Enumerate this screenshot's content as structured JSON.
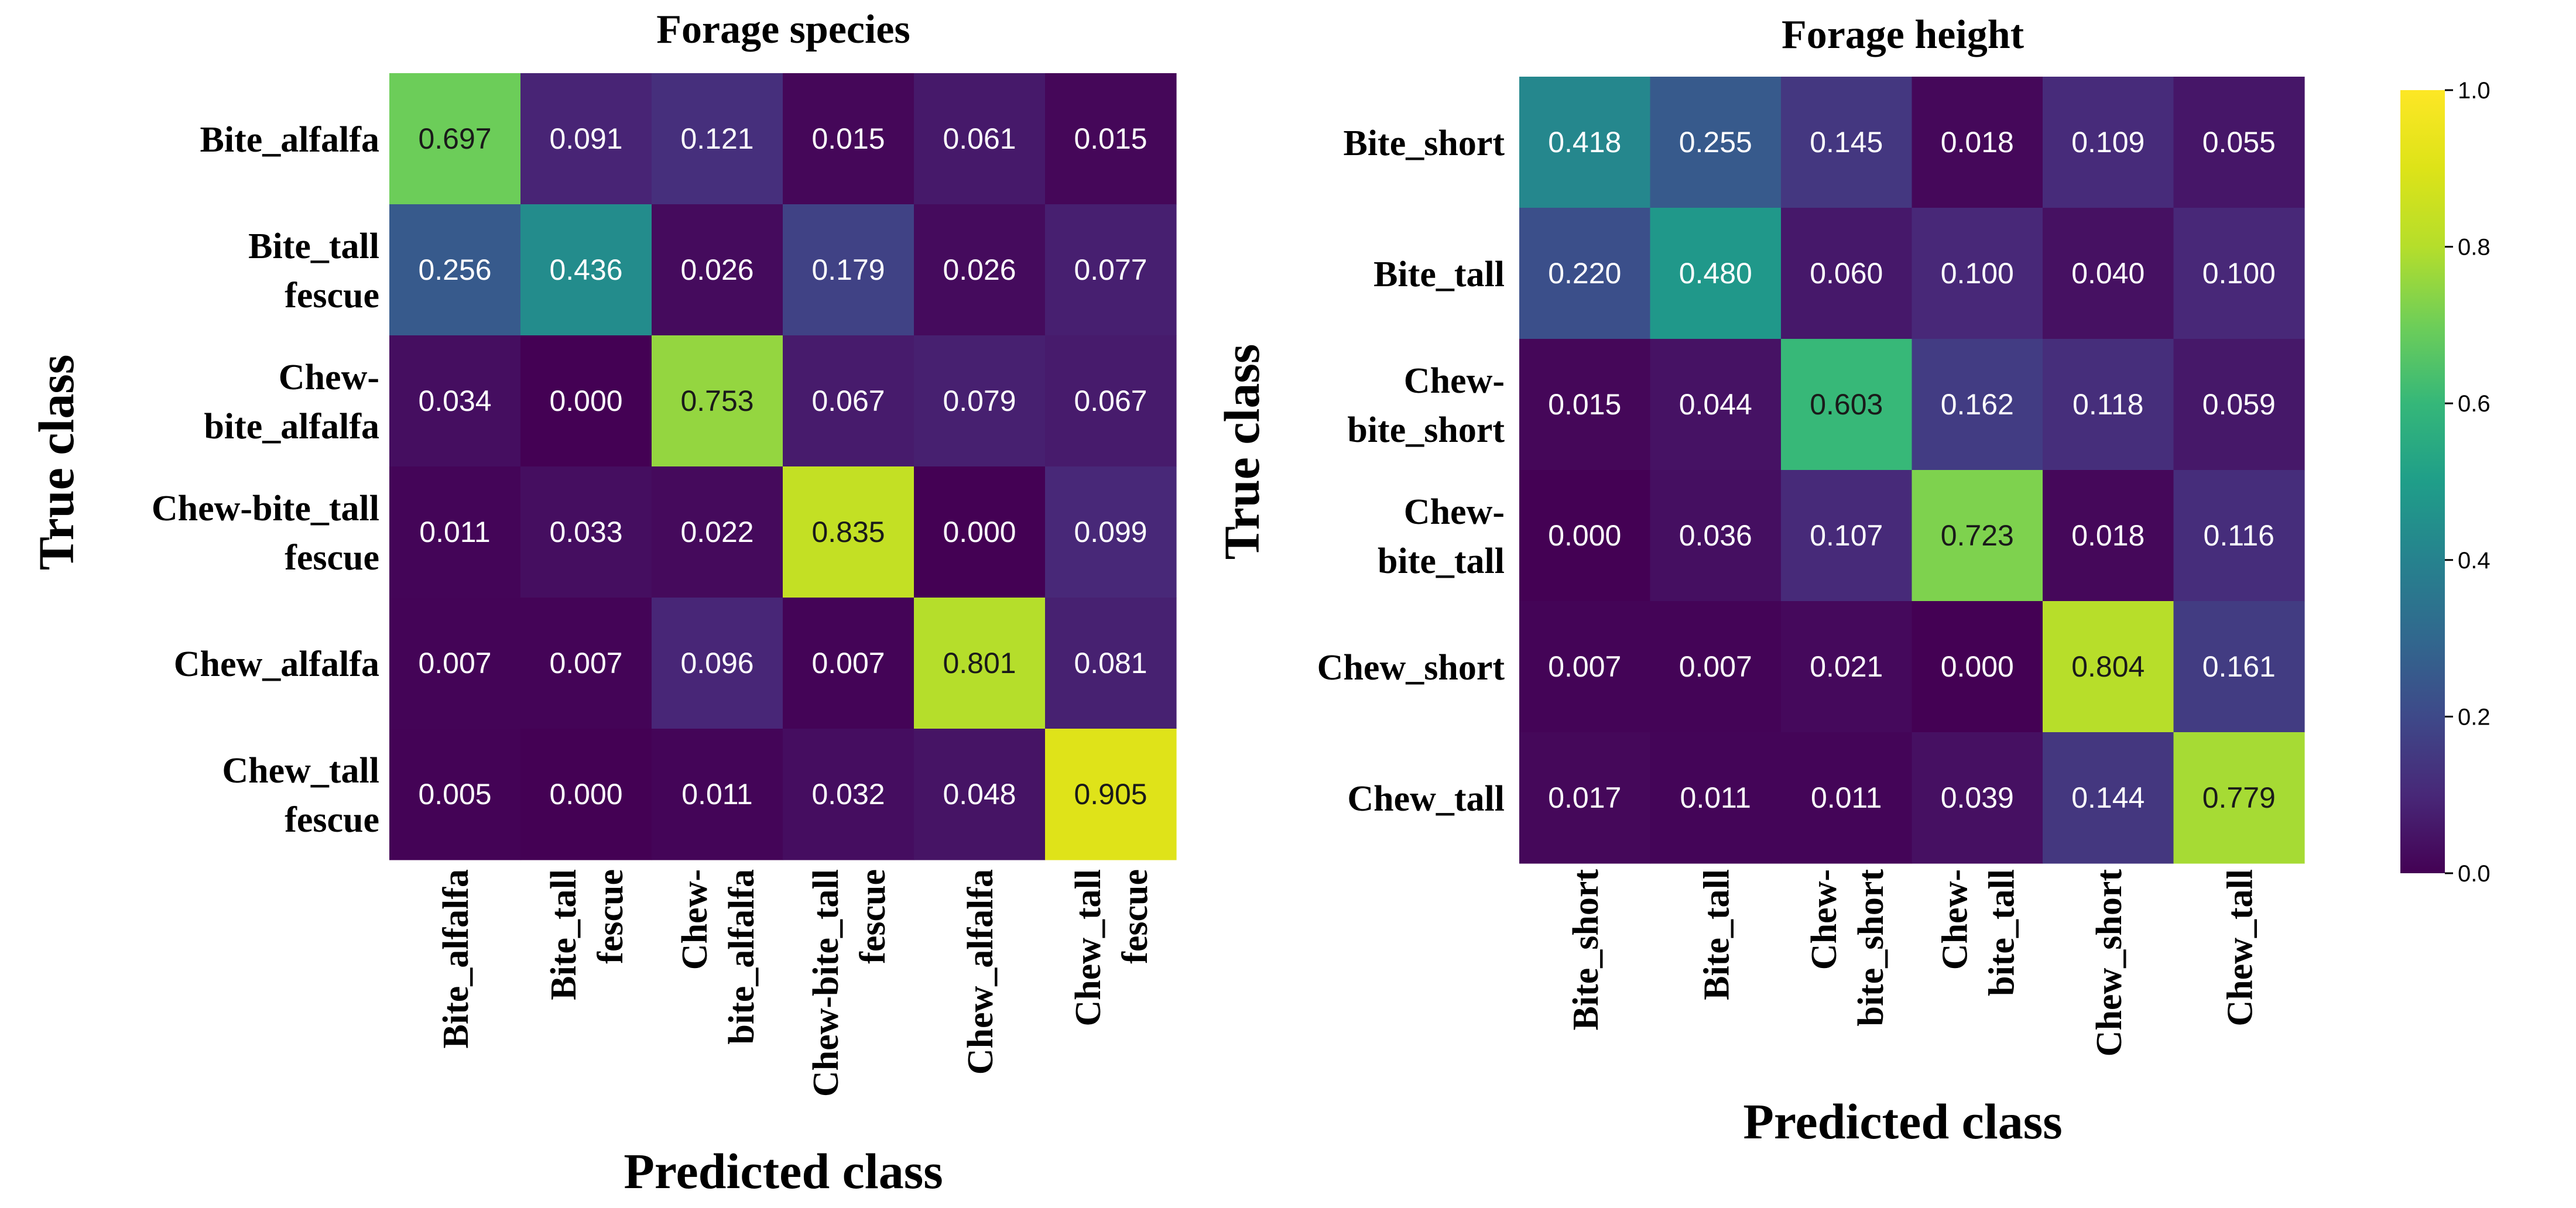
{
  "chart_data": [
    {
      "type": "heatmap",
      "title": "Forage species",
      "xlabel": "Predicted class",
      "ylabel": "True class",
      "row_labels": [
        [
          "Bite_alfalfa"
        ],
        [
          "Bite_tall",
          "fescue"
        ],
        [
          "Chew-",
          "bite_alfalfa"
        ],
        [
          "Chew-bite_tall",
          "fescue"
        ],
        [
          "Chew_alfalfa"
        ],
        [
          "Chew_tall",
          "fescue"
        ]
      ],
      "col_labels": [
        [
          "Bite_alfalfa"
        ],
        [
          "Bite_tall",
          "fescue"
        ],
        [
          "Chew-",
          "bite_alfalfa"
        ],
        [
          "Chew-bite_tall",
          "fescue"
        ],
        [
          "Chew_alfalfa"
        ],
        [
          "Chew_tall",
          "fescue"
        ]
      ],
      "matrix": [
        [
          "0.697",
          "0.091",
          "0.121",
          "0.015",
          "0.061",
          "0.015"
        ],
        [
          "0.256",
          "0.436",
          "0.026",
          "0.179",
          "0.026",
          "0.077"
        ],
        [
          "0.034",
          "0.000",
          "0.753",
          "0.067",
          "0.079",
          "0.067"
        ],
        [
          "0.011",
          "0.033",
          "0.022",
          "0.835",
          "0.000",
          "0.099"
        ],
        [
          "0.007",
          "0.007",
          "0.096",
          "0.007",
          "0.801",
          "0.081"
        ],
        [
          "0.005",
          "0.000",
          "0.011",
          "0.032",
          "0.048",
          "0.905"
        ]
      ],
      "colormap": "viridis",
      "vmin": 0.0,
      "vmax": 1.0
    },
    {
      "type": "heatmap",
      "title": "Forage height",
      "xlabel": "Predicted class",
      "ylabel": "True class",
      "row_labels": [
        [
          "Bite_short"
        ],
        [
          "Bite_tall"
        ],
        [
          "Chew-",
          "bite_short"
        ],
        [
          "Chew-",
          "bite_tall"
        ],
        [
          "Chew_short"
        ],
        [
          "Chew_tall"
        ]
      ],
      "col_labels": [
        [
          "Bite_short"
        ],
        [
          "Bite_tall"
        ],
        [
          "Chew-",
          "bite_short"
        ],
        [
          "Chew-",
          "bite_tall"
        ],
        [
          "Chew_short"
        ],
        [
          "Chew_tall"
        ]
      ],
      "matrix": [
        [
          "0.418",
          "0.255",
          "0.145",
          "0.018",
          "0.109",
          "0.055"
        ],
        [
          "0.220",
          "0.480",
          "0.060",
          "0.100",
          "0.040",
          "0.100"
        ],
        [
          "0.015",
          "0.044",
          "0.603",
          "0.162",
          "0.118",
          "0.059"
        ],
        [
          "0.000",
          "0.036",
          "0.107",
          "0.723",
          "0.018",
          "0.116"
        ],
        [
          "0.007",
          "0.007",
          "0.021",
          "0.000",
          "0.804",
          "0.161"
        ],
        [
          "0.017",
          "0.011",
          "0.011",
          "0.039",
          "0.144",
          "0.779"
        ]
      ],
      "colormap": "viridis",
      "vmin": 0.0,
      "vmax": 1.0
    }
  ],
  "colorbar": {
    "ticks": [
      "0.0",
      "0.2",
      "0.4",
      "0.6",
      "0.8",
      "1.0"
    ],
    "min": 0.0,
    "max": 1.0
  }
}
